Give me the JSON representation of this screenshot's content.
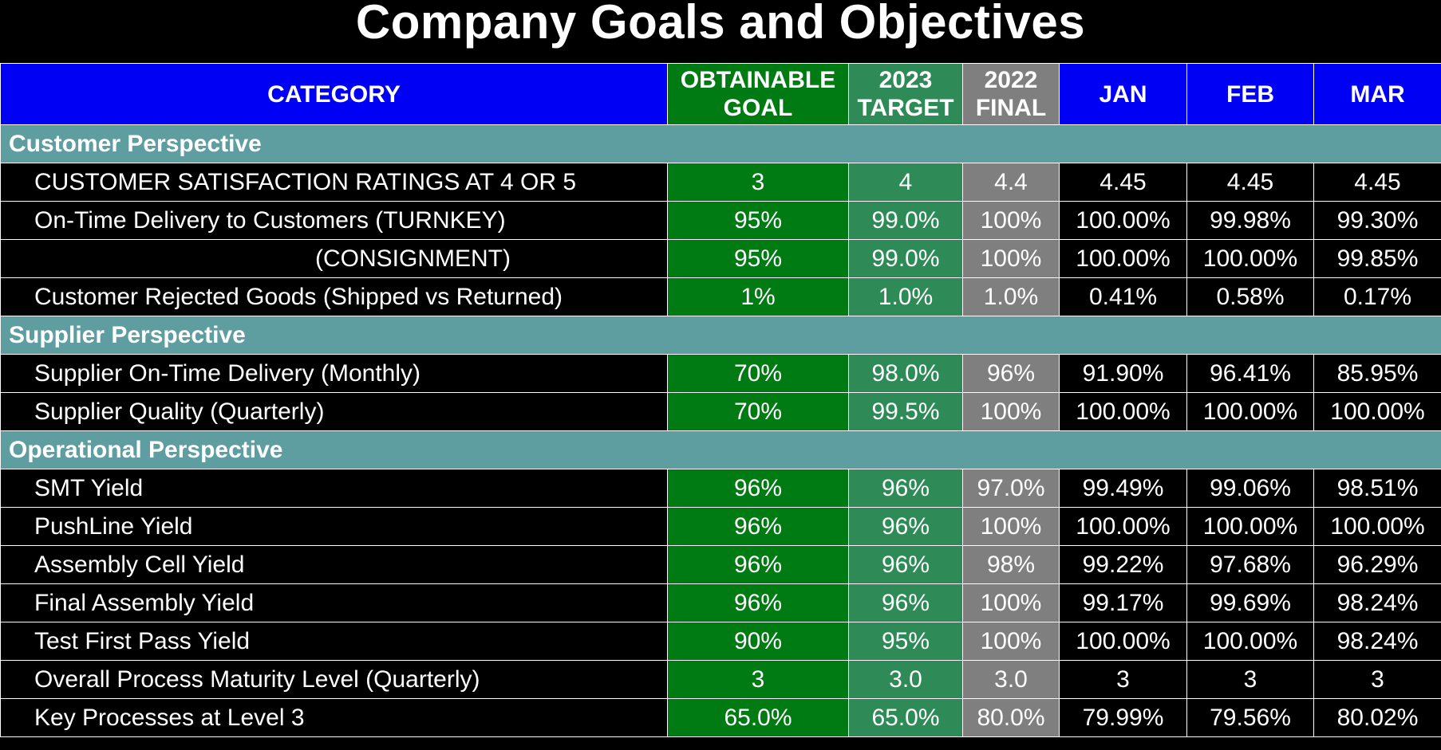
{
  "title": "Company Goals and Objectives",
  "headers": {
    "category": "CATEGORY",
    "goal_line1": "OBTAINABLE",
    "goal_line2": "GOAL",
    "target_line1": "2023",
    "target_line2": "TARGET",
    "final_line1": "2022",
    "final_line2": "FINAL",
    "jan": "JAN",
    "feb": "FEB",
    "mar": "MAR"
  },
  "colors": {
    "header_blue": "#0000f5",
    "goal_green": "#007a12",
    "target_green": "#2e8b57",
    "final_gray": "#7f7f7f",
    "section_teal": "#5f9ea0"
  },
  "sections": [
    {
      "name": "Customer Perspective",
      "rows": [
        {
          "label": "CUSTOMER SATISFACTION RATINGS AT 4 OR 5",
          "goal": "3",
          "target": "4",
          "final": "4.4",
          "jan": "4.45",
          "feb": "4.45",
          "mar": "4.45"
        },
        {
          "label": "On-Time Delivery to Customers (TURNKEY)",
          "goal": "95%",
          "target": "99.0%",
          "final": "100%",
          "jan": "100.00%",
          "feb": "99.98%",
          "mar": "99.30%"
        },
        {
          "label": "(CONSIGNMENT)",
          "goal": "95%",
          "target": "99.0%",
          "final": "100%",
          "jan": "100.00%",
          "feb": "100.00%",
          "mar": "99.85%"
        },
        {
          "label": "Customer Rejected Goods (Shipped vs Returned)",
          "goal": "1%",
          "target": "1.0%",
          "final": "1.0%",
          "jan": "0.41%",
          "feb": "0.58%",
          "mar": "0.17%"
        }
      ]
    },
    {
      "name": "Supplier Perspective",
      "rows": [
        {
          "label": "Supplier On-Time Delivery (Monthly)",
          "goal": "70%",
          "target": "98.0%",
          "final": "96%",
          "jan": "91.90%",
          "feb": "96.41%",
          "mar": "85.95%"
        },
        {
          "label": "Supplier Quality (Quarterly)",
          "goal": "70%",
          "target": "99.5%",
          "final": "100%",
          "jan": "100.00%",
          "feb": "100.00%",
          "mar": "100.00%"
        }
      ]
    },
    {
      "name": "Operational Perspective",
      "rows": [
        {
          "label": "SMT Yield",
          "goal": "96%",
          "target": "96%",
          "final": "97.0%",
          "jan": "99.49%",
          "feb": "99.06%",
          "mar": "98.51%"
        },
        {
          "label": "PushLine Yield",
          "goal": "96%",
          "target": "96%",
          "final": "100%",
          "jan": "100.00%",
          "feb": "100.00%",
          "mar": "100.00%"
        },
        {
          "label": "Assembly Cell Yield",
          "goal": "96%",
          "target": "96%",
          "final": "98%",
          "jan": "99.22%",
          "feb": "97.68%",
          "mar": "96.29%"
        },
        {
          "label": "Final Assembly Yield",
          "goal": "96%",
          "target": "96%",
          "final": "100%",
          "jan": "99.17%",
          "feb": "99.69%",
          "mar": "98.24%"
        },
        {
          "label": "Test First Pass Yield",
          "goal": "90%",
          "target": "95%",
          "final": "100%",
          "jan": "100.00%",
          "feb": "100.00%",
          "mar": "98.24%"
        },
        {
          "label": "Overall Process Maturity Level (Quarterly)",
          "goal": "3",
          "target": "3.0",
          "final": "3.0",
          "jan": "3",
          "feb": "3",
          "mar": "3"
        },
        {
          "label": "Key Processes at Level 3",
          "goal": "65.0%",
          "target": "65.0%",
          "final": "80.0%",
          "jan": "79.99%",
          "feb": "79.56%",
          "mar": "80.02%"
        }
      ]
    }
  ]
}
